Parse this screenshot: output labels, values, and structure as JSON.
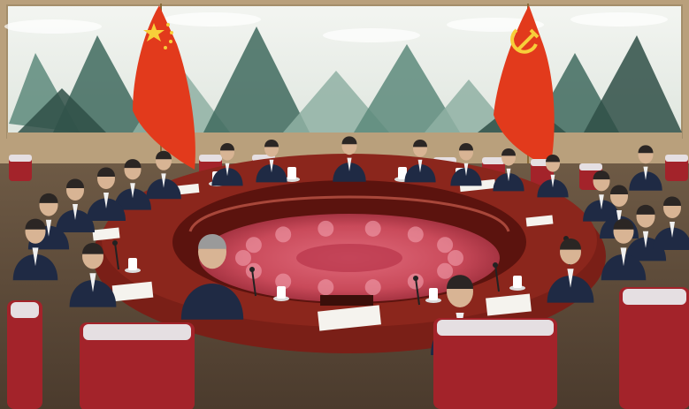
{
  "scene": {
    "wall_color": "#b9a07c",
    "mural_paper_color": "#eef1ec",
    "mountain_colors": [
      "#3f6a5e",
      "#5d8a7b",
      "#8fb0a3",
      "#2f4f46"
    ],
    "flag_color": "#e23a1c",
    "emblem_color": "#f7cf3a",
    "table_color": "#7a1f17",
    "table_top_color": "#8b261c",
    "carpet_color": "#c94a5a",
    "chair_color": "#a3232a",
    "chair_trim_color": "#e5dfe2",
    "suit_color": "#1f2a44",
    "skin_color": "#d8b494",
    "hair_color": "#2b2624",
    "paper_color": "#f5f3ee"
  }
}
